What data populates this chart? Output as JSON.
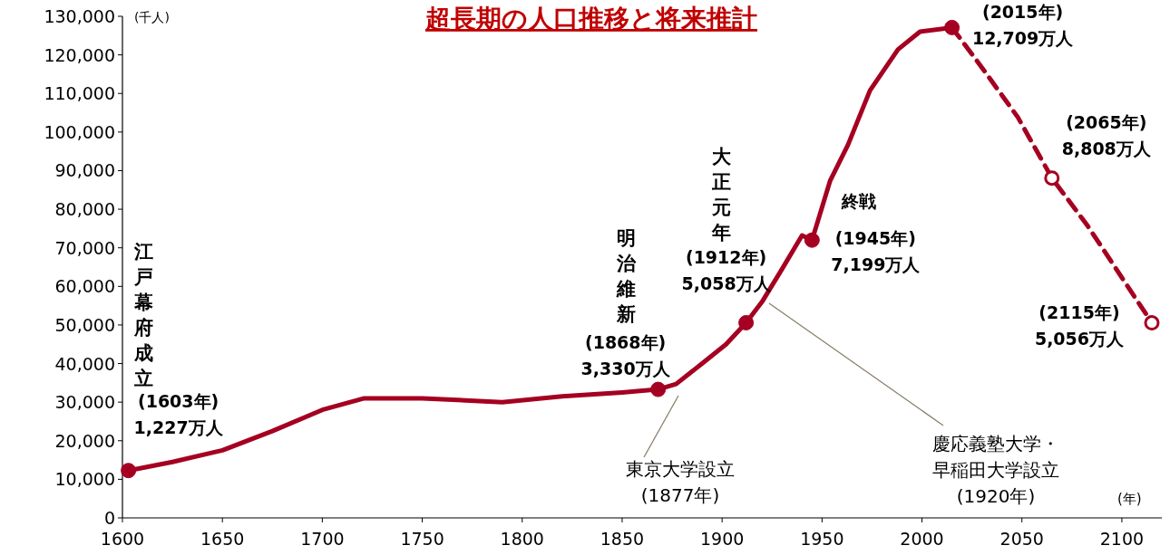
{
  "chart_data": {
    "type": "line",
    "title": "超長期の人口推移と将来推計",
    "xlabel": "(年)",
    "ylabel": "(千人)",
    "xlim": [
      1600,
      2120
    ],
    "xticks": [
      1600,
      1650,
      1700,
      1750,
      1800,
      1850,
      1900,
      1950,
      2000,
      2050,
      2100
    ],
    "ylim": [
      0,
      130000
    ],
    "yticks": [
      {
        "value": 0,
        "label": "0"
      },
      {
        "value": 10000,
        "label": "10,000"
      },
      {
        "value": 20000,
        "label": "20,000"
      },
      {
        "value": 30000,
        "label": "30,000"
      },
      {
        "value": 40000,
        "label": "40,000"
      },
      {
        "value": 50000,
        "label": "50,000"
      },
      {
        "value": 60000,
        "label": "60,000"
      },
      {
        "value": 70000,
        "label": "70,000"
      },
      {
        "value": 80000,
        "label": "80,000"
      },
      {
        "value": 90000,
        "label": "90,000"
      },
      {
        "value": 100000,
        "label": "100,000"
      },
      {
        "value": 110000,
        "label": "110,000"
      },
      {
        "value": 120000,
        "label": "120,000"
      },
      {
        "value": 130000,
        "label": "130,000"
      }
    ],
    "grid": false,
    "series": [
      {
        "line_style": "solid",
        "marker": "none",
        "color": "#a50021",
        "x": [
          1603,
          1625,
          1650,
          1675,
          1700,
          1721,
          1750,
          1790,
          1820,
          1850,
          1868,
          1877,
          1890,
          1902,
          1912,
          1920,
          1930,
          1940,
          1945,
          1954,
          1963,
          1974,
          1988,
          1999,
          2015
        ],
        "values": [
          12270,
          14500,
          17500,
          22500,
          28000,
          31000,
          31000,
          30000,
          31500,
          32500,
          33300,
          34700,
          40000,
          45000,
          50580,
          56000,
          64500,
          73200,
          71990,
          87300,
          96700,
          110800,
          121400,
          126000,
          127090
        ]
      },
      {
        "line_style": "dashed",
        "marker": "none",
        "color": "#a50021",
        "x": [
          2015,
          2030,
          2048,
          2065,
          2083,
          2101,
          2115
        ],
        "values": [
          127090,
          116700,
          103800,
          88080,
          75600,
          61500,
          50560
        ]
      },
      {
        "type": "scatter",
        "marker": "circle",
        "color": "#a50021",
        "x": [
          1603,
          1868,
          1912,
          1945,
          2015
        ],
        "values": [
          12270,
          33300,
          50580,
          71990,
          127090
        ]
      },
      {
        "type": "scatter",
        "marker": "circle",
        "color": "#a50021",
        "colors": [
          "#ffffff",
          "#ffffff"
        ],
        "x": [
          2065,
          2115
        ],
        "values": [
          88080,
          50560
        ]
      }
    ],
    "annotations": [
      "江戸幕府成立",
      {
        "text": "(1603年)\n1,227万人",
        "x": 1603,
        "y": 12270
      },
      "明治維新",
      {
        "text": "(1868年)\n3,330万人",
        "x": 1868,
        "y": 33300
      },
      "大正元年",
      {
        "text": "(1912年)\n5,058万人",
        "x": 1912,
        "y": 50580
      },
      {
        "text": "終戦",
        "x": 1945,
        "y": 71990
      },
      {
        "text": "(1945年)\n7,199万人",
        "x": 1945,
        "y": 71990
      },
      {
        "text": "(2015年)\n12,709万人",
        "x": 2015,
        "y": 127090
      },
      {
        "text": "(2065年)\n8,808万人",
        "x": 2065,
        "y": 88080
      },
      {
        "text": "(2115年)\n5,056万人",
        "x": 2115,
        "y": 50560
      },
      "東京大学設立\n(1877年)",
      "慶応義塾大学・早稲田大学設立\n(1920年)"
    ]
  }
}
